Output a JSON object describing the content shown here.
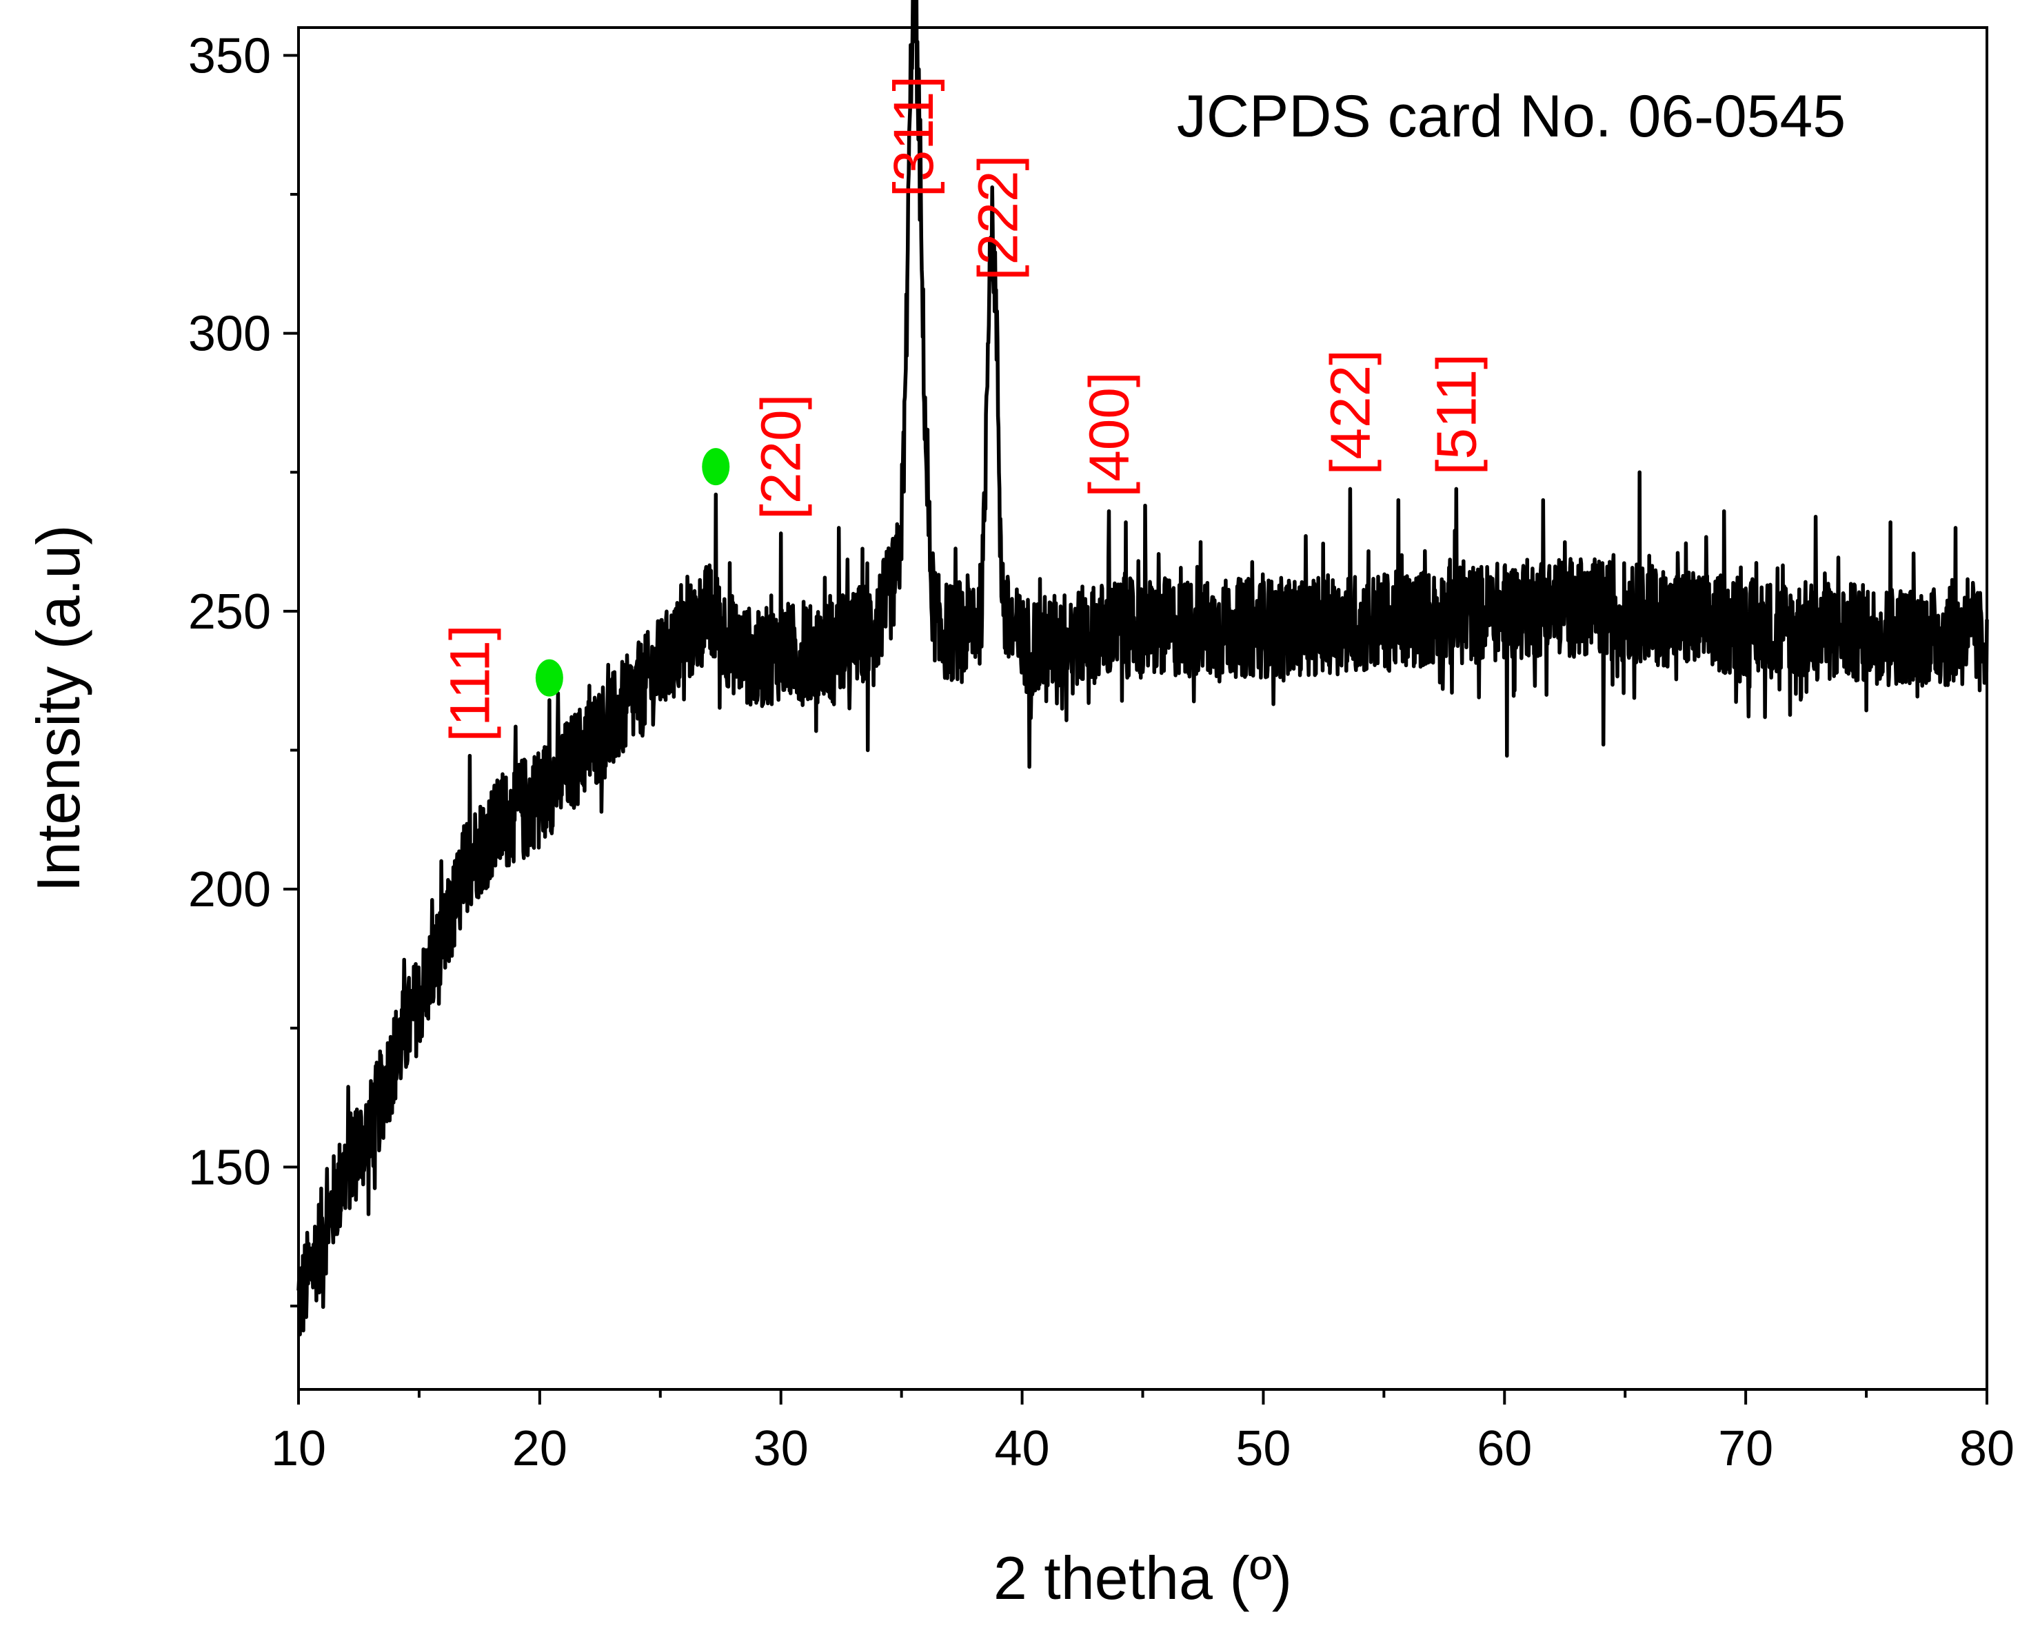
{
  "chart_data": {
    "type": "line",
    "xlabel": "2 thetha (º)",
    "ylabel": "Intensity (a.u)",
    "xlim": [
      10,
      80
    ],
    "ylim": [
      110,
      355
    ],
    "xticks": [
      10,
      20,
      30,
      40,
      50,
      60,
      70,
      80
    ],
    "yticks": [
      150,
      200,
      250,
      300,
      350
    ],
    "annotation": "JCPDS card No. 06-0545",
    "colors": {
      "line": "#000000",
      "peak_label": "#ff0000",
      "marker": "#00e600"
    },
    "peak_labels": [
      {
        "text": "[111]",
        "x": 17.1,
        "y": 224
      },
      {
        "text": "[220]",
        "x": 30.0,
        "y": 264
      },
      {
        "text": "[311]",
        "x": 35.5,
        "y": 322
      },
      {
        "text": "[222]",
        "x": 39.0,
        "y": 307
      },
      {
        "text": "[400]",
        "x": 43.6,
        "y": 268
      },
      {
        "text": "[422]",
        "x": 53.6,
        "y": 272
      },
      {
        "text": "[511]",
        "x": 58.0,
        "y": 272
      }
    ],
    "markers": [
      {
        "x": 20.4,
        "y": 238
      },
      {
        "x": 27.3,
        "y": 276
      }
    ],
    "baseline": [
      [
        10,
        125
      ],
      [
        11,
        138
      ],
      [
        12,
        150
      ],
      [
        13,
        157
      ],
      [
        14,
        170
      ],
      [
        15,
        180
      ],
      [
        16,
        190
      ],
      [
        17,
        205
      ],
      [
        18,
        210
      ],
      [
        19,
        214
      ],
      [
        20,
        217
      ],
      [
        21,
        221
      ],
      [
        22,
        226
      ],
      [
        23,
        230
      ],
      [
        24,
        235
      ],
      [
        25,
        240
      ],
      [
        26,
        245
      ],
      [
        27,
        250
      ],
      [
        28,
        244
      ],
      [
        29,
        241
      ],
      [
        30,
        243
      ],
      [
        31,
        242
      ],
      [
        32,
        243
      ],
      [
        33,
        245
      ],
      [
        34,
        248
      ],
      [
        35,
        258
      ],
      [
        36,
        249
      ],
      [
        37,
        246
      ],
      [
        38,
        248
      ],
      [
        39,
        250
      ],
      [
        40,
        244
      ],
      [
        41,
        244
      ],
      [
        42,
        245
      ],
      [
        43,
        246
      ],
      [
        44,
        247
      ],
      [
        45,
        247
      ],
      [
        50,
        247
      ],
      [
        55,
        248
      ],
      [
        60,
        250
      ],
      [
        62,
        251
      ],
      [
        65,
        250
      ],
      [
        70,
        247
      ],
      [
        75,
        246
      ],
      [
        80,
        245
      ]
    ],
    "peaks": [
      {
        "center": 35.45,
        "height": 78,
        "width": 0.3
      },
      {
        "center": 35.75,
        "height": 50,
        "width": 0.35
      },
      {
        "center": 38.65,
        "height": 55,
        "width": 0.2
      },
      {
        "center": 38.9,
        "height": 45,
        "width": 0.2
      }
    ],
    "spikes": [
      [
        17.1,
        224
      ],
      [
        20.4,
        234
      ],
      [
        27.3,
        271
      ],
      [
        30.0,
        264
      ],
      [
        32.4,
        265
      ],
      [
        33.6,
        225
      ],
      [
        38.9,
        306
      ],
      [
        40.3,
        222
      ],
      [
        43.6,
        268
      ],
      [
        44.3,
        266
      ],
      [
        45.1,
        269
      ],
      [
        53.6,
        272
      ],
      [
        55.6,
        270
      ],
      [
        58.0,
        272
      ],
      [
        60.1,
        224
      ],
      [
        61.6,
        270
      ],
      [
        64.1,
        226
      ],
      [
        65.6,
        275
      ],
      [
        69.1,
        268
      ],
      [
        72.9,
        267
      ],
      [
        76.0,
        266
      ],
      [
        78.7,
        265
      ]
    ],
    "noise_amplitude": 9
  }
}
